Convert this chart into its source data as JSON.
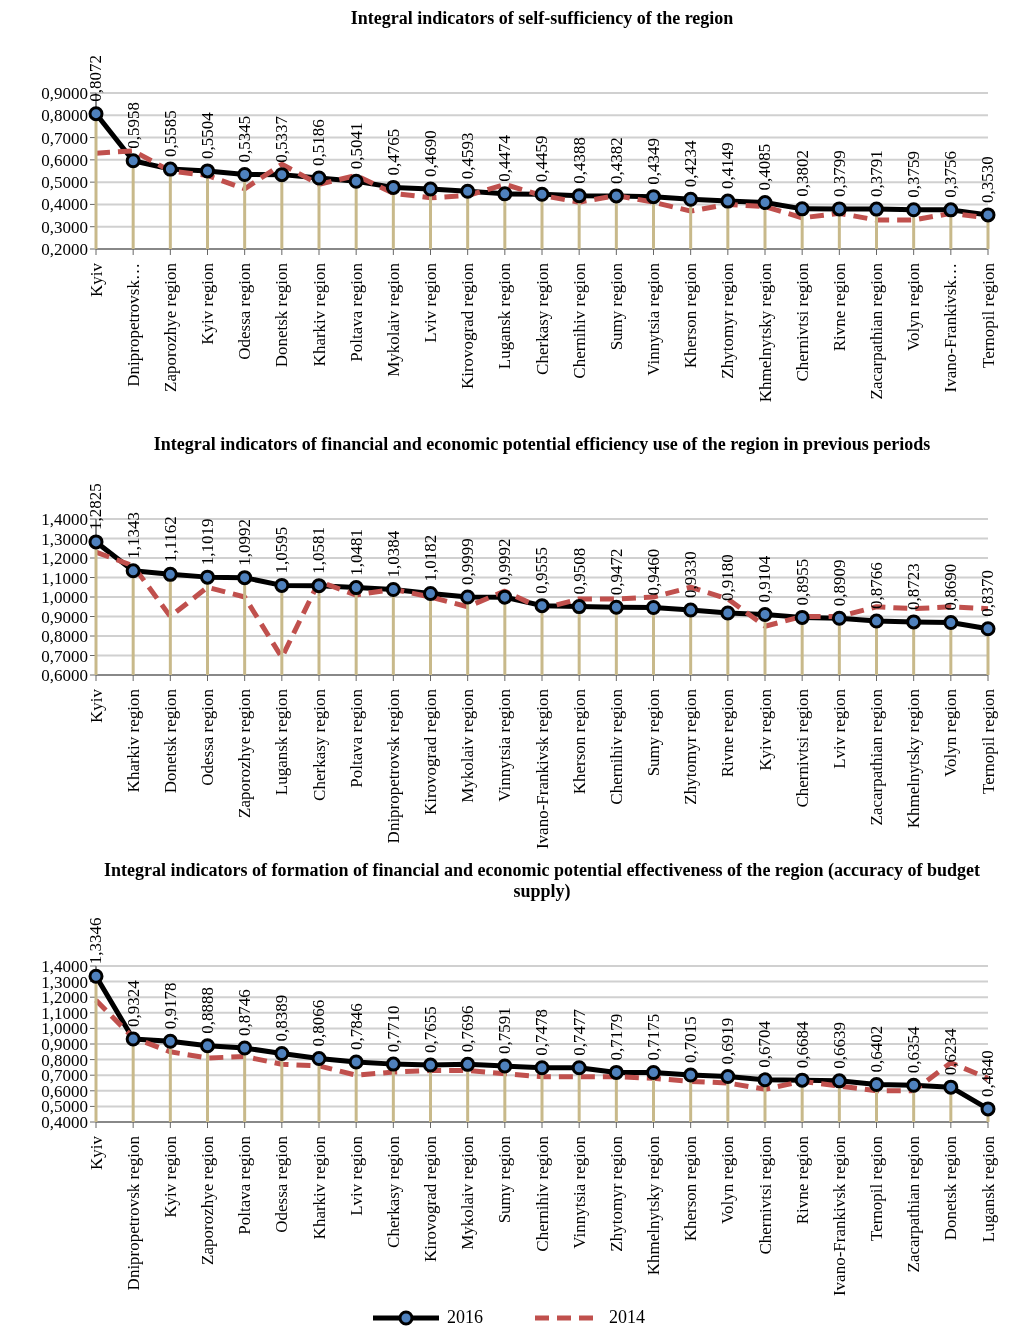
{
  "chart_data": [
    {
      "type": "line",
      "title": "Integral indicators of self-sufficiency of the region",
      "categories": [
        "Kyiv",
        "Dnipropetrovsk…",
        "Zaporozhye region",
        "Kyiv region",
        "Odessa region",
        "Donetsk region",
        "Kharkiv region",
        "Poltava region",
        "Mykolaiv region",
        "Lviv region",
        "Kirovograd region",
        "Lugansk region",
        "Cherkasy region",
        "Chernihiv region",
        "Sumy region",
        "Vinnytsia region",
        "Kherson region",
        "Zhytomyr region",
        "Khmelnytsky region",
        "Chernivtsi region",
        "Rivne region",
        "Zacarpathian region",
        "Volyn region",
        "Ivano-Frankivsk…",
        "Ternopil region"
      ],
      "series": [
        {
          "color": "#000000",
          "marker": "circle",
          "line_style": "solid",
          "values": [
            0.8072,
            0.5958,
            0.5585,
            0.5504,
            0.5345,
            0.5337,
            0.5186,
            0.5041,
            0.4765,
            0.469,
            0.4593,
            0.4474,
            0.4459,
            0.4388,
            0.4382,
            0.4349,
            0.4234,
            0.4149,
            0.4085,
            0.3802,
            0.3799,
            0.3791,
            0.3759,
            0.3756,
            0.353
          ],
          "value_labels": [
            "0,8072",
            "0,5958",
            "0,5585",
            "0,5504",
            "0,5345",
            "0,5337",
            "0,5186",
            "0,5041",
            "0,4765",
            "0,4690",
            "0,4593",
            "0,4474",
            "0,4459",
            "0,4388",
            "0,4382",
            "0,4349",
            "0,4234",
            "0,4149",
            "0,4085",
            "0,3802",
            "0,3799",
            "0,3791",
            "0,3759",
            "0,3756",
            "0,3530"
          ]
        },
        {
          "color": "#c0504d",
          "marker": "none",
          "line_style": "dashed",
          "values": [
            0.63,
            0.64,
            0.55,
            0.53,
            0.47,
            0.58,
            0.49,
            0.53,
            0.45,
            0.43,
            0.44,
            0.49,
            0.44,
            0.41,
            0.44,
            0.41,
            0.37,
            0.4,
            0.39,
            0.34,
            0.36,
            0.33,
            0.33,
            0.36,
            0.34
          ]
        }
      ],
      "ylim": [
        0.2,
        0.9
      ],
      "yticks": [
        {
          "value": 0.2,
          "label": "0,2000"
        },
        {
          "value": 0.3,
          "label": "0,3000"
        },
        {
          "value": 0.4,
          "label": "0,4000"
        },
        {
          "value": 0.5,
          "label": "0,5000"
        },
        {
          "value": 0.6,
          "label": "0,6000"
        },
        {
          "value": 0.7,
          "label": "0,7000"
        },
        {
          "value": 0.8,
          "label": "0,8000"
        },
        {
          "value": 0.9,
          "label": "0,9000"
        }
      ],
      "grid": "y"
    },
    {
      "type": "line",
      "title": "Integral indicators of financial and economic potential efficiency use of the region in previous periods",
      "categories": [
        "Kyiv",
        "Kharkiv region",
        "Donetsk region",
        "Odessa region",
        "Zaporozhye region",
        "Lugansk region",
        "Cherkasy region",
        "Poltava region",
        "Dnipropetrovsk region",
        "Kirovograd region",
        "Mykolaiv region",
        "Vinnytsia region",
        "Ivano-Frankivsk region",
        "Kherson region",
        "Chernihiv region",
        "Sumy region",
        "Zhytomyr region",
        "Rivne region",
        "Kyiv region",
        "Chernivtsi region",
        "Lviv region",
        "Zacarpathian region",
        "Khmelnytsky region",
        "Volyn region",
        "Ternopil region"
      ],
      "series": [
        {
          "color": "#000000",
          "marker": "circle",
          "line_style": "solid",
          "values": [
            1.2825,
            1.1343,
            1.1162,
            1.1019,
            1.0992,
            1.0595,
            1.0581,
            1.0481,
            1.0384,
            1.0182,
            0.9999,
            0.9992,
            0.9555,
            0.9508,
            0.9472,
            0.946,
            0.933,
            0.918,
            0.9104,
            0.8955,
            0.8909,
            0.8766,
            0.8723,
            0.869,
            0.837
          ],
          "value_labels": [
            "1,2825",
            "1,1343",
            "1,1162",
            "1,1019",
            "1,0992",
            "1,0595",
            "1,0581",
            "1,0481",
            "1,0384",
            "1,0182",
            "0,9999",
            "0,9992",
            "0,9555",
            "0,9508",
            "0,9472",
            "0,9460",
            "0,9330",
            "0,9180",
            "0,9104",
            "0,8955",
            "0,8909",
            "0,8766",
            "0,8723",
            "0,8690",
            "0,8370"
          ]
        },
        {
          "color": "#c0504d",
          "marker": "none",
          "line_style": "dashed",
          "values": [
            1.23,
            1.16,
            0.9,
            1.05,
            1.0,
            0.69,
            1.08,
            1.01,
            1.04,
            1.0,
            0.95,
            1.03,
            0.94,
            0.99,
            0.99,
            1.0,
            1.05,
            0.99,
            0.85,
            0.9,
            0.9,
            0.95,
            0.94,
            0.95,
            0.94
          ]
        }
      ],
      "ylim": [
        0.6,
        1.4
      ],
      "yticks": [
        {
          "value": 0.6,
          "label": "0,6000"
        },
        {
          "value": 0.7,
          "label": "0,7000"
        },
        {
          "value": 0.8,
          "label": "0,8000"
        },
        {
          "value": 0.9,
          "label": "0,9000"
        },
        {
          "value": 1.0,
          "label": "1,0000"
        },
        {
          "value": 1.1,
          "label": "1,1000"
        },
        {
          "value": 1.2,
          "label": "1,2000"
        },
        {
          "value": 1.3,
          "label": "1,3000"
        },
        {
          "value": 1.4,
          "label": "1,4000"
        }
      ],
      "grid": "y"
    },
    {
      "type": "line",
      "title": "Integral indicators of formation of financial and economic potential effectiveness of the region (accuracy of budget supply)",
      "categories": [
        "Kyiv",
        "Dnipropetrovsk region",
        "Kyiv region",
        "Zaporozhye region",
        "Poltava region",
        "Odessa region",
        "Kharkiv region",
        "Lviv region",
        "Cherkasy region",
        "Kirovograd region",
        "Mykolaiv region",
        "Sumy region",
        "Chernihiv region",
        "Vinnytsia region",
        "Zhytomyr region",
        "Khmelnytsky region",
        "Kherson region",
        "Volyn region",
        "Chernivtsi region",
        "Rivne region",
        "Ivano-Frankivsk region",
        "Ternopil region",
        "Zacarpathian region",
        "Donetsk region",
        "Lugansk region"
      ],
      "series": [
        {
          "name": "2016",
          "color": "#000000",
          "marker": "circle",
          "line_style": "solid",
          "values": [
            1.3346,
            0.9324,
            0.9178,
            0.8888,
            0.8746,
            0.8389,
            0.8066,
            0.7846,
            0.771,
            0.7655,
            0.7696,
            0.7591,
            0.7478,
            0.7477,
            0.7179,
            0.7175,
            0.7015,
            0.6919,
            0.6704,
            0.6684,
            0.6639,
            0.6402,
            0.6354,
            0.6234,
            0.484
          ],
          "value_labels": [
            "1,3346",
            "0,9324",
            "0,9178",
            "0,8888",
            "0,8746",
            "0,8389",
            "0,8066",
            "0,7846",
            "0,7710",
            "0,7655",
            "0,7696",
            "0,7591",
            "0,7478",
            "0,7477",
            "0,7179",
            "0,7175",
            "0,7015",
            "0,6919",
            "0,6704",
            "0,6684",
            "0,6639",
            "0,6402",
            "0,6354",
            "0,6234",
            "0,4840"
          ]
        },
        {
          "name": "2014",
          "color": "#c0504d",
          "marker": "none",
          "line_style": "dashed",
          "values": [
            1.18,
            0.94,
            0.85,
            0.81,
            0.82,
            0.77,
            0.76,
            0.7,
            0.72,
            0.73,
            0.73,
            0.71,
            0.69,
            0.69,
            0.69,
            0.68,
            0.66,
            0.65,
            0.61,
            0.66,
            0.63,
            0.6,
            0.6,
            0.78,
            0.68
          ]
        }
      ],
      "ylim": [
        0.4,
        1.4
      ],
      "yticks": [
        {
          "value": 0.4,
          "label": "0,4000"
        },
        {
          "value": 0.5,
          "label": "0,5000"
        },
        {
          "value": 0.6,
          "label": "0,6000"
        },
        {
          "value": 0.7,
          "label": "0,7000"
        },
        {
          "value": 0.8,
          "label": "0,8000"
        },
        {
          "value": 0.9,
          "label": "0,9000"
        },
        {
          "value": 1.0,
          "label": "1,0000"
        },
        {
          "value": 1.1,
          "label": "1,1000"
        },
        {
          "value": 1.2,
          "label": "1,2000"
        },
        {
          "value": 1.3,
          "label": "1,3000"
        },
        {
          "value": 1.4,
          "label": "1,4000"
        }
      ],
      "grid": "y",
      "legend": "bottom"
    }
  ]
}
